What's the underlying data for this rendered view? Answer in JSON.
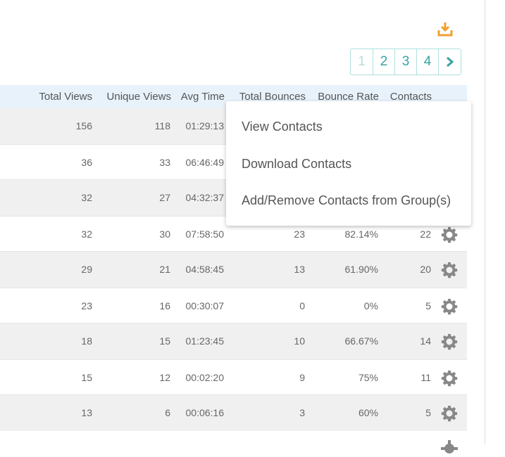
{
  "toolbar": {
    "download_icon": "download-icon",
    "accent_color": "#f0a030"
  },
  "pagination": {
    "pages": [
      "1",
      "2",
      "3",
      "4"
    ],
    "current": "1",
    "next_icon": "chevron-right-icon"
  },
  "table": {
    "columns": {
      "total_views": "Total Views",
      "unique_views": "Unique Views",
      "avg_time": "Avg Time",
      "total_bounces": "Total Bounces",
      "bounce_rate": "Bounce Rate",
      "contacts": "Contacts"
    },
    "rows": [
      {
        "total_views": "156",
        "unique_views": "118",
        "avg_time": "01:29:13",
        "total_bounces": "",
        "bounce_rate": "",
        "contacts": ""
      },
      {
        "total_views": "36",
        "unique_views": "33",
        "avg_time": "06:46:49",
        "total_bounces": "",
        "bounce_rate": "",
        "contacts": ""
      },
      {
        "total_views": "32",
        "unique_views": "27",
        "avg_time": "04:32:37",
        "total_bounces": "",
        "bounce_rate": "",
        "contacts": ""
      },
      {
        "total_views": "32",
        "unique_views": "30",
        "avg_time": "07:58:50",
        "total_bounces": "23",
        "bounce_rate": "82.14%",
        "contacts": "22"
      },
      {
        "total_views": "29",
        "unique_views": "21",
        "avg_time": "04:58:45",
        "total_bounces": "13",
        "bounce_rate": "61.90%",
        "contacts": "20"
      },
      {
        "total_views": "23",
        "unique_views": "16",
        "avg_time": "00:30:07",
        "total_bounces": "0",
        "bounce_rate": "0%",
        "contacts": "5"
      },
      {
        "total_views": "18",
        "unique_views": "15",
        "avg_time": "01:23:45",
        "total_bounces": "10",
        "bounce_rate": "66.67%",
        "contacts": "14"
      },
      {
        "total_views": "15",
        "unique_views": "12",
        "avg_time": "00:02:20",
        "total_bounces": "9",
        "bounce_rate": "75%",
        "contacts": "11"
      },
      {
        "total_views": "13",
        "unique_views": "6",
        "avg_time": "00:06:16",
        "total_bounces": "3",
        "bounce_rate": "60%",
        "contacts": "5"
      }
    ],
    "row_action_icon": "gear-icon"
  },
  "dropdown": {
    "items": [
      "View Contacts",
      "Download Contacts",
      "Add/Remove Contacts from Group(s)"
    ]
  }
}
